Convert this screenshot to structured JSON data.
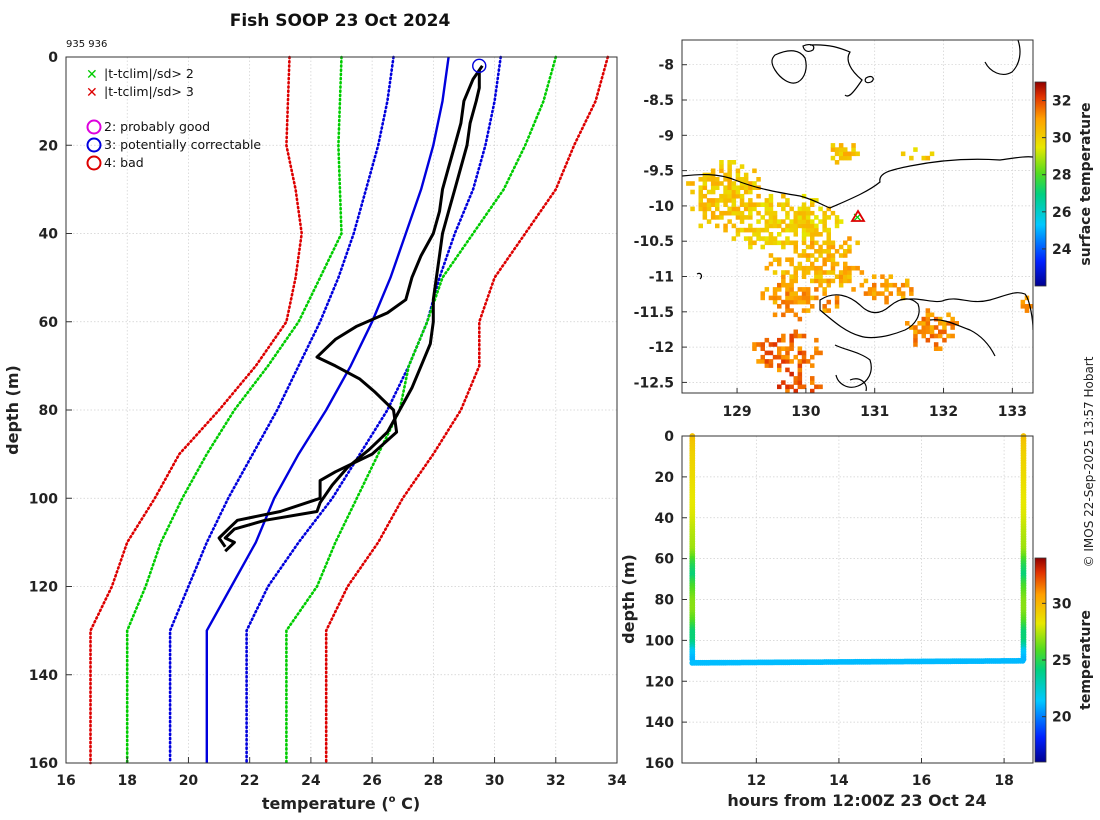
{
  "title": "Fish SOOP 23 Oct 2024",
  "subtitle_ids": "935 936",
  "credit": "© IMOS 22-Sep-2025 13:57 Hobart",
  "chart_data": [
    {
      "type": "line",
      "name": "temperature-depth-profile",
      "xlabel": "temperature (o C)",
      "xlabel_prefix": "temperature (",
      "xlabel_sup": "o",
      "xlabel_suffix": " C)",
      "ylabel": "depth (m)",
      "xlim": [
        16,
        34
      ],
      "ylim": [
        0,
        160
      ],
      "y_inverted": true,
      "xticks": [
        16,
        18,
        20,
        22,
        24,
        26,
        28,
        30,
        32,
        34
      ],
      "yticks": [
        0,
        20,
        40,
        60,
        80,
        100,
        120,
        140,
        160
      ],
      "legend": [
        {
          "symbol": "x",
          "color": "#00cc00",
          "label": "|t-tclim|/sd> 2"
        },
        {
          "symbol": "x",
          "color": "#dd0000",
          "label": "|t-tclim|/sd> 3"
        },
        {
          "symbol": "o",
          "color": "#dd00dd",
          "label": "2: probably good"
        },
        {
          "symbol": "o",
          "color": "#0000dd",
          "label": "3: potentially correctable"
        },
        {
          "symbol": "o",
          "color": "#dd0000",
          "label": "4: bad"
        }
      ],
      "series": [
        {
          "name": "climatology mean",
          "color": "#0000dd",
          "style": "solid",
          "points": [
            [
              28.5,
              0
            ],
            [
              28.3,
              10
            ],
            [
              28.0,
              20
            ],
            [
              27.6,
              30
            ],
            [
              27.1,
              40
            ],
            [
              26.6,
              50
            ],
            [
              26.0,
              60
            ],
            [
              25.3,
              70
            ],
            [
              24.5,
              80
            ],
            [
              23.6,
              90
            ],
            [
              22.8,
              100
            ],
            [
              22.2,
              110
            ],
            [
              21.4,
              120
            ],
            [
              20.6,
              130
            ],
            [
              20.6,
              160
            ]
          ]
        },
        {
          "name": "mean - 1sd",
          "color": "#0000dd",
          "style": "dotted",
          "points": [
            [
              26.7,
              0
            ],
            [
              26.5,
              10
            ],
            [
              26.2,
              20
            ],
            [
              25.8,
              30
            ],
            [
              25.4,
              40
            ],
            [
              24.9,
              50
            ],
            [
              24.3,
              60
            ],
            [
              23.6,
              70
            ],
            [
              22.9,
              80
            ],
            [
              22.1,
              90
            ],
            [
              21.3,
              100
            ],
            [
              20.6,
              110
            ],
            [
              20.0,
              120
            ],
            [
              19.4,
              130
            ],
            [
              19.4,
              160
            ]
          ]
        },
        {
          "name": "mean + 1sd",
          "color": "#0000dd",
          "style": "dotted",
          "points": [
            [
              30.2,
              0
            ],
            [
              30.0,
              10
            ],
            [
              29.7,
              20
            ],
            [
              29.3,
              30
            ],
            [
              28.7,
              40
            ],
            [
              28.2,
              50
            ],
            [
              27.8,
              60
            ],
            [
              27.2,
              70
            ],
            [
              26.5,
              80
            ],
            [
              25.6,
              90
            ],
            [
              24.7,
              100
            ],
            [
              23.6,
              110
            ],
            [
              22.6,
              120
            ],
            [
              21.9,
              130
            ],
            [
              21.9,
              160
            ]
          ]
        },
        {
          "name": "mean - 2sd",
          "color": "#00cc00",
          "style": "dotted",
          "points": [
            [
              25.0,
              0
            ],
            [
              24.9,
              20
            ],
            [
              25.0,
              40
            ],
            [
              24.3,
              50
            ],
            [
              23.6,
              60
            ],
            [
              22.6,
              70
            ],
            [
              21.5,
              80
            ],
            [
              20.6,
              90
            ],
            [
              19.8,
              100
            ],
            [
              19.1,
              110
            ],
            [
              18.6,
              120
            ],
            [
              18.0,
              130
            ],
            [
              18.0,
              160
            ]
          ]
        },
        {
          "name": "mean + 2sd",
          "color": "#00cc00",
          "style": "dotted",
          "points": [
            [
              32.0,
              0
            ],
            [
              31.6,
              10
            ],
            [
              31.0,
              20
            ],
            [
              30.3,
              30
            ],
            [
              29.3,
              40
            ],
            [
              28.3,
              50
            ],
            [
              27.8,
              60
            ],
            [
              27.2,
              70
            ],
            [
              26.9,
              80
            ],
            [
              26.2,
              90
            ],
            [
              25.5,
              100
            ],
            [
              24.8,
              110
            ],
            [
              24.2,
              120
            ],
            [
              23.2,
              130
            ],
            [
              23.2,
              160
            ]
          ]
        },
        {
          "name": "mean - 3sd",
          "color": "#dd0000",
          "style": "dotted",
          "points": [
            [
              23.3,
              0
            ],
            [
              23.2,
              20
            ],
            [
              23.5,
              30
            ],
            [
              23.7,
              40
            ],
            [
              23.5,
              50
            ],
            [
              23.2,
              60
            ],
            [
              22.2,
              70
            ],
            [
              21.0,
              80
            ],
            [
              19.7,
              90
            ],
            [
              18.9,
              100
            ],
            [
              18.0,
              110
            ],
            [
              17.5,
              120
            ],
            [
              16.8,
              130
            ],
            [
              16.8,
              160
            ]
          ]
        },
        {
          "name": "mean + 3sd",
          "color": "#dd0000",
          "style": "dotted",
          "points": [
            [
              33.7,
              0
            ],
            [
              33.3,
              10
            ],
            [
              32.6,
              20
            ],
            [
              32.0,
              30
            ],
            [
              31.0,
              40
            ],
            [
              30.0,
              50
            ],
            [
              29.5,
              60
            ],
            [
              29.5,
              70
            ],
            [
              28.9,
              80
            ],
            [
              28.0,
              90
            ],
            [
              27.0,
              100
            ],
            [
              26.2,
              110
            ],
            [
              25.2,
              120
            ],
            [
              24.5,
              130
            ],
            [
              24.5,
              160
            ]
          ]
        },
        {
          "name": "xbt drop 935",
          "color": "#000000",
          "style": "solid",
          "points": [
            [
              29.6,
              2
            ],
            [
              29.3,
              5
            ],
            [
              29.0,
              10
            ],
            [
              28.9,
              15
            ],
            [
              28.7,
              20
            ],
            [
              28.5,
              25
            ],
            [
              28.3,
              30
            ],
            [
              28.2,
              35
            ],
            [
              28.0,
              40
            ],
            [
              27.6,
              45
            ],
            [
              27.3,
              50
            ],
            [
              27.1,
              55
            ],
            [
              26.5,
              58
            ],
            [
              25.5,
              61
            ],
            [
              24.8,
              64
            ],
            [
              24.5,
              66
            ],
            [
              24.2,
              68
            ],
            [
              24.8,
              70
            ],
            [
              25.6,
              73
            ],
            [
              26.1,
              76
            ],
            [
              26.7,
              80
            ],
            [
              26.8,
              85
            ],
            [
              26.0,
              90
            ],
            [
              24.8,
              94
            ],
            [
              24.3,
              96
            ],
            [
              24.3,
              100
            ],
            [
              23.0,
              103
            ],
            [
              21.6,
              105
            ],
            [
              21.3,
              107
            ],
            [
              21.0,
              109
            ],
            [
              21.2,
              111
            ]
          ]
        },
        {
          "name": "xbt drop 936",
          "color": "#000000",
          "style": "solid",
          "points": [
            [
              29.5,
              3
            ],
            [
              29.5,
              7
            ],
            [
              29.4,
              10
            ],
            [
              29.2,
              15
            ],
            [
              29.1,
              20
            ],
            [
              28.9,
              25
            ],
            [
              28.7,
              30
            ],
            [
              28.5,
              35
            ],
            [
              28.3,
              40
            ],
            [
              28.2,
              45
            ],
            [
              28.1,
              50
            ],
            [
              28.0,
              55
            ],
            [
              28.0,
              60
            ],
            [
              27.9,
              65
            ],
            [
              27.6,
              70
            ],
            [
              27.3,
              75
            ],
            [
              26.9,
              80
            ],
            [
              26.5,
              85
            ],
            [
              25.9,
              89
            ],
            [
              25.2,
              93
            ],
            [
              24.7,
              97
            ],
            [
              24.3,
              101
            ],
            [
              24.2,
              103
            ],
            [
              22.5,
              105
            ],
            [
              21.5,
              107
            ],
            [
              21.2,
              109
            ],
            [
              21.5,
              110
            ],
            [
              21.2,
              112
            ]
          ]
        }
      ],
      "marker": {
        "symbol": "o",
        "color": "#0000dd",
        "x": 29.5,
        "y": 2
      }
    },
    {
      "type": "heatmap",
      "name": "surface-temperature-map",
      "xlim": [
        128.2,
        133.3
      ],
      "ylim": [
        -12.65,
        -7.65
      ],
      "xticks": [
        129,
        130,
        131,
        132,
        133
      ],
      "yticks": [
        -8,
        -8.5,
        -9,
        -9.5,
        -10,
        -10.5,
        -11,
        -11.5,
        -12,
        -12.5
      ],
      "xtick_labels": [
        "129",
        "130",
        "131",
        "132",
        "133"
      ],
      "ytick_labels": [
        "-8",
        "-8.5",
        "-9",
        "-9.5",
        "-10",
        "-10.5",
        "-11",
        "-11.5",
        "-12",
        "-12.5"
      ],
      "colorbar_label": "surface temperature",
      "colorbar_range": [
        22,
        33
      ],
      "colorbar_ticks": [
        24,
        26,
        28,
        30,
        32
      ],
      "colorbar_tick_labels": [
        "24",
        "26",
        "28",
        "30",
        "32"
      ],
      "marker_position": [
        130.75,
        -10.15
      ]
    },
    {
      "type": "scatter",
      "name": "depth-time-section",
      "xlabel": "hours from 12:00Z 23 Oct 24",
      "ylabel": "depth (m)",
      "xlim": [
        10.2,
        18.7
      ],
      "ylim": [
        0,
        160
      ],
      "y_inverted": true,
      "xticks": [
        12,
        14,
        16,
        18
      ],
      "yticks": [
        0,
        20,
        40,
        60,
        80,
        100,
        120,
        140,
        160
      ],
      "colorbar_label": "temperature",
      "colorbar_range": [
        16,
        34
      ],
      "colorbar_ticks": [
        20,
        25,
        30
      ],
      "colorbar_tick_labels": [
        "20",
        "25",
        "30"
      ],
      "profile_times": [
        10.45,
        18.45
      ],
      "max_depth": 110,
      "bottom_track": {
        "x": [
          10.45,
          18.45
        ],
        "y": [
          111,
          110
        ]
      }
    }
  ]
}
